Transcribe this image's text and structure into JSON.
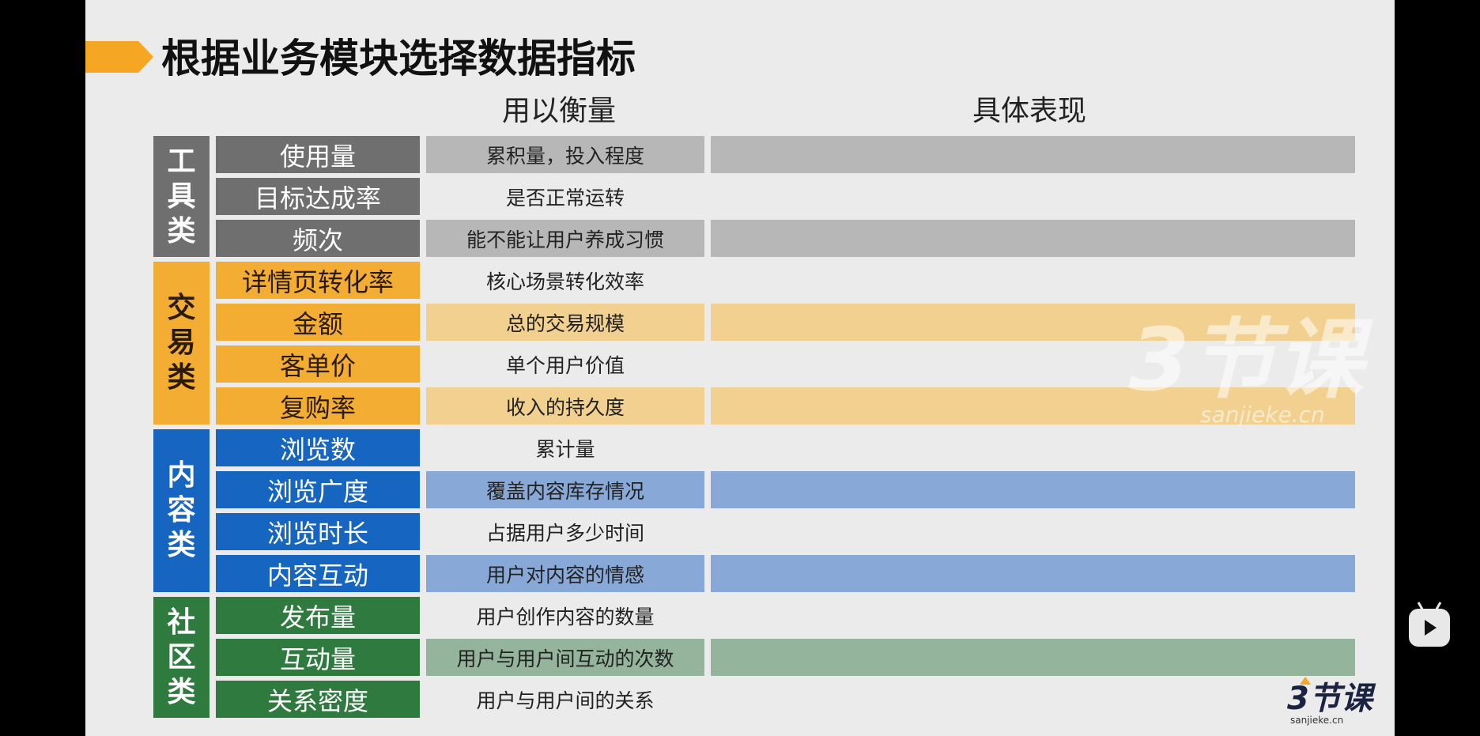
{
  "slide": {
    "title": "根据业务模块选择数据指标",
    "col_heads": {
      "measure": "用以衡量",
      "detail": "具体表现"
    },
    "groups": [
      {
        "label": "工具类",
        "color": "#6f6f6f",
        "rows": [
          {
            "metric": "使用量",
            "measure": "累积量，投入程度"
          },
          {
            "metric": "目标达成率",
            "measure": "是否正常运转"
          },
          {
            "metric": "频次",
            "measure": "能不能让用户养成习惯"
          }
        ]
      },
      {
        "label": "交易类",
        "color": "#f4ad33",
        "rows": [
          {
            "metric": "详情页转化率",
            "measure": "核心场景转化效率"
          },
          {
            "metric": "金额",
            "measure": "总的交易规模"
          },
          {
            "metric": "客单价",
            "measure": "单个用户价值"
          },
          {
            "metric": "复购率",
            "measure": "收入的持久度"
          }
        ]
      },
      {
        "label": "内容类",
        "color": "#1665c1",
        "rows": [
          {
            "metric": "浏览数",
            "measure": "累计量"
          },
          {
            "metric": "浏览广度",
            "measure": "覆盖内容库存情况"
          },
          {
            "metric": "浏览时长",
            "measure": "占据用户多少时间"
          },
          {
            "metric": "内容互动",
            "measure": "用户对内容的情感"
          }
        ]
      },
      {
        "label": "社区类",
        "color": "#2f7a3f",
        "rows": [
          {
            "metric": "发布量",
            "measure": "用户创作内容的数量"
          },
          {
            "metric": "互动量",
            "measure": "用户与用户间互动的次数"
          },
          {
            "metric": "关系密度",
            "measure": "用户与用户间的关系"
          }
        ]
      }
    ],
    "watermark": {
      "text": "3节课",
      "sub": "sanjieke.cn"
    },
    "logo": {
      "text": "3节课",
      "sub": "sanjieke.cn"
    }
  },
  "player": {
    "icon": "bilibili-tv-icon"
  }
}
